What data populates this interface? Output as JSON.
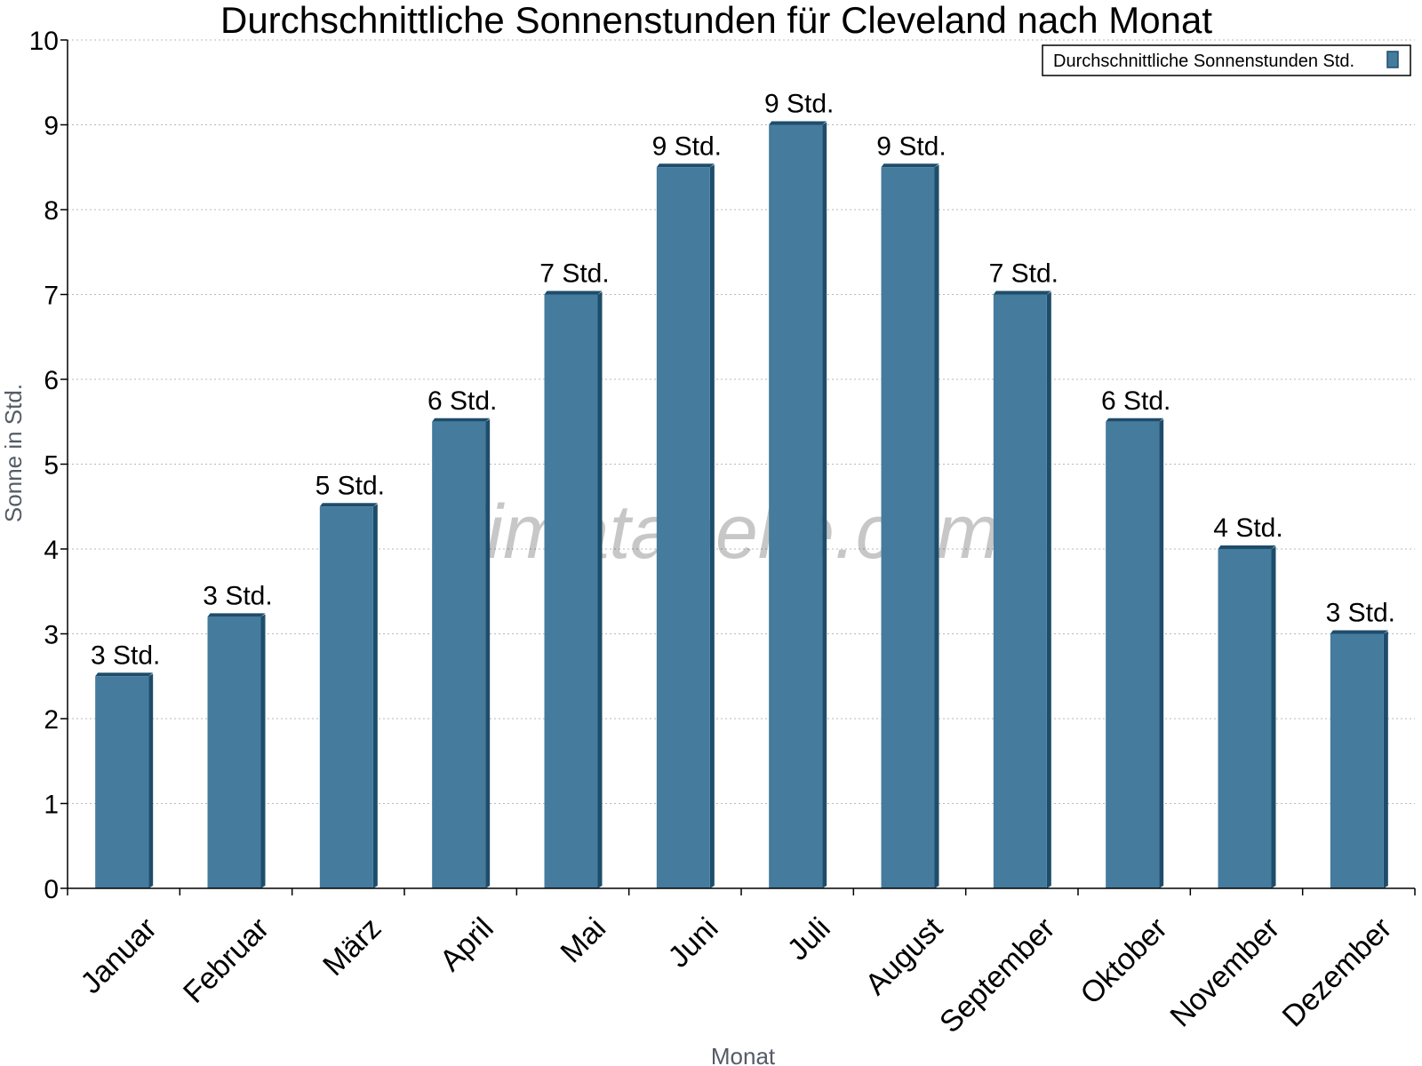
{
  "chart_data": {
    "type": "bar",
    "title": "Durchschnittliche Sonnenstunden für Cleveland nach Monat",
    "xlabel": "Monat",
    "ylabel": "Sonne in Std.",
    "ylim": [
      0,
      10
    ],
    "yticks": [
      0,
      1,
      2,
      3,
      4,
      5,
      6,
      7,
      8,
      9,
      10
    ],
    "grid": true,
    "legend_position": "top-right",
    "categories": [
      "Januar",
      "Februar",
      "März",
      "April",
      "Mai",
      "Juni",
      "Juli",
      "August",
      "September",
      "Oktober",
      "November",
      "Dezember"
    ],
    "series": [
      {
        "name": "Durchschnittliche Sonnenstunden Std.",
        "values": [
          2.5,
          3.2,
          4.5,
          5.5,
          7,
          8.5,
          9,
          8.5,
          7,
          5.5,
          4,
          3
        ],
        "labels": [
          "3 Std.",
          "3 Std.",
          "5 Std.",
          "6 Std.",
          "7 Std.",
          "9 Std.",
          "9 Std.",
          "9 Std.",
          "7 Std.",
          "6 Std.",
          "4 Std.",
          "3 Std."
        ],
        "color": "#457b9d",
        "side_color": "#1e4d6b"
      }
    ],
    "watermark": "klimatabelle.com"
  }
}
